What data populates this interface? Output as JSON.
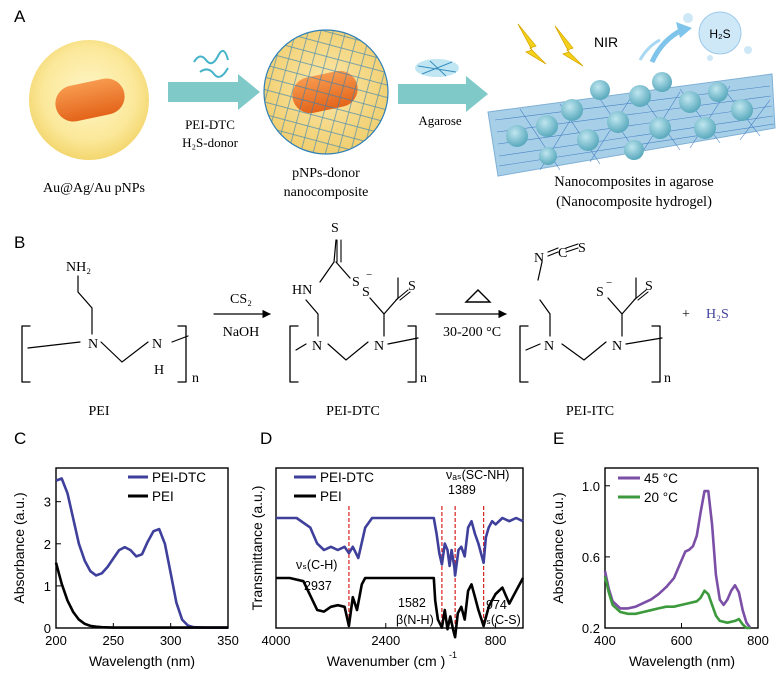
{
  "panels": {
    "A": {
      "letter": "A",
      "particle_label": "Au@Ag/Au pNPs",
      "arrow1_line1": "PEI-DTC",
      "arrow1_line2": "H₂S-donor",
      "composite_line1": "pNPs-donor",
      "composite_line2": "nanocomposite",
      "arrow2_label": "Agarose",
      "hydrogel_line1": "Nanocomposites in agarose",
      "hydrogel_line2": "(Nanocomposite hydrogel)",
      "nir_label": "NIR",
      "h2s_bubble": "H₂S"
    },
    "B": {
      "letter": "B",
      "pei": {
        "nh2": "NH₂",
        "n": "N",
        "nh_n": "N",
        "nh_h": "H",
        "sub": "n",
        "name": "PEI"
      },
      "step1_top": "CS₂",
      "step1_bottom": "NaOH",
      "dtc": {
        "s_top": "S",
        "hn": "HN",
        "s_minus": "S",
        "charge": "−",
        "s_right": "S",
        "s_left": "S",
        "n1": "N",
        "n2": "N",
        "sub": "n",
        "name": "PEI-DTC"
      },
      "step2_bottom": "30-200 °C",
      "itc": {
        "ncs": "N",
        "c": "C",
        "s": "S",
        "s_left": "S",
        "charge": "−",
        "s_right": "S",
        "n1": "N",
        "n2": "N",
        "sub": "n",
        "name": "PEI-ITC"
      },
      "plus": "+",
      "h2s": "H₂S"
    }
  },
  "colors": {
    "purple": "#3f3f9c",
    "black": "#000000",
    "violet": "#7b4fa6",
    "green": "#3c9a3c",
    "red": "#d62020",
    "teal": "#63c0c0"
  },
  "chart_data": [
    {
      "id": "C",
      "letter": "C",
      "type": "line",
      "xlabel": "Wavelength (nm)",
      "ylabel": "Absorbance (a.u.)",
      "xlim": [
        200,
        350
      ],
      "ylim": [
        0,
        3.8
      ],
      "xticks": [
        "200",
        "250",
        "300",
        "350"
      ],
      "yticks": [
        "0",
        "1",
        "2",
        "3"
      ],
      "legend": "top-right",
      "series": [
        {
          "name": "PEI-DTC",
          "color": "#3f3f9c",
          "x": [
            200,
            205,
            210,
            215,
            220,
            225,
            230,
            235,
            240,
            245,
            250,
            255,
            260,
            265,
            270,
            275,
            280,
            285,
            290,
            295,
            300,
            305,
            310,
            315,
            320,
            330,
            340,
            350
          ],
          "y": [
            3.5,
            3.55,
            3.2,
            2.6,
            2.0,
            1.6,
            1.35,
            1.25,
            1.3,
            1.45,
            1.65,
            1.85,
            1.92,
            1.85,
            1.7,
            1.75,
            2.05,
            2.3,
            2.35,
            2.0,
            1.3,
            0.6,
            0.2,
            0.06,
            0.02,
            0.01,
            0.01,
            0.01
          ]
        },
        {
          "name": "PEI",
          "color": "#000000",
          "x": [
            200,
            205,
            210,
            215,
            220,
            225,
            230,
            235,
            240,
            250,
            260,
            280,
            300,
            320,
            350
          ],
          "y": [
            1.55,
            1.05,
            0.65,
            0.38,
            0.2,
            0.1,
            0.05,
            0.03,
            0.02,
            0.01,
            0.01,
            0.01,
            0.01,
            0.01,
            0.01
          ]
        }
      ]
    },
    {
      "id": "D",
      "letter": "D",
      "type": "line",
      "xlabel": "Wavenumber  (cm  )",
      "xlabel_sup": "-1",
      "ylabel": "Transmittance (a.u.)",
      "xlim": [
        4000,
        400
      ],
      "xticks": [
        "4000",
        "2400",
        "800"
      ],
      "xtick_values": [
        4000,
        2400,
        800
      ],
      "legend": "top-left",
      "annotations": [
        {
          "text": "νₐₛ(SC-NH)",
          "value": "1389"
        },
        {
          "text": "νₛ(C-H)",
          "value": "2937"
        },
        {
          "text": "β(N-H)",
          "value": "1582"
        },
        {
          "text": "νₛ(C-S)",
          "value": "974"
        }
      ],
      "annotation_lines": [
        2937,
        1582,
        1389,
        974
      ],
      "series": [
        {
          "name": "PEI-DTC",
          "color": "#3f3f9c",
          "x": [
            4000,
            3700,
            3500,
            3400,
            3300,
            3200,
            3100,
            3000,
            2937,
            2880,
            2800,
            2700,
            2600,
            2400,
            2000,
            1700,
            1660,
            1620,
            1582,
            1540,
            1500,
            1470,
            1440,
            1400,
            1389,
            1340,
            1300,
            1250,
            1200,
            1150,
            1100,
            1050,
            974,
            940,
            900,
            850,
            800,
            700,
            600,
            500,
            400
          ],
          "y": [
            0.0,
            0.0,
            0.3,
            0.8,
            1.0,
            0.9,
            1.0,
            0.9,
            1.1,
            0.9,
            1.25,
            0.3,
            0.0,
            0.0,
            0.0,
            0.0,
            0.5,
            1.1,
            1.45,
            0.8,
            1.0,
            1.5,
            1.0,
            1.55,
            1.8,
            1.0,
            0.9,
            1.2,
            0.3,
            0.1,
            0.5,
            0.8,
            1.4,
            0.6,
            0.3,
            0.1,
            0.2,
            0.0,
            0.1,
            0.0,
            0.1
          ]
        },
        {
          "name": "PEI",
          "color": "#000000",
          "x": [
            4000,
            3800,
            3600,
            3500,
            3400,
            3300,
            3200,
            3100,
            3000,
            2937,
            2880,
            2820,
            2750,
            2700,
            2600,
            2400,
            2000,
            1700,
            1680,
            1640,
            1582,
            1540,
            1500,
            1460,
            1420,
            1389,
            1350,
            1300,
            1250,
            1200,
            1150,
            1100,
            1050,
            974,
            900,
            850,
            800,
            700,
            600,
            500,
            400
          ],
          "y": [
            0.0,
            0.0,
            0.1,
            0.55,
            1.0,
            1.05,
            0.9,
            0.85,
            0.9,
            1.5,
            0.6,
            1.0,
            0.2,
            0.0,
            0.0,
            0.0,
            0.0,
            0.0,
            0.7,
            1.3,
            1.55,
            1.0,
            1.6,
            1.2,
            1.6,
            1.85,
            1.1,
            0.9,
            1.3,
            0.4,
            0.2,
            0.6,
            1.0,
            1.5,
            0.9,
            0.7,
            0.5,
            0.3,
            0.8,
            0.4,
            0.0
          ]
        }
      ]
    },
    {
      "id": "E",
      "letter": "E",
      "type": "line",
      "xlabel": "Wavelength (nm)",
      "ylabel": "Absorbance (a.u.)",
      "xlim": [
        400,
        800
      ],
      "ylim": [
        0.2,
        1.1
      ],
      "xticks": [
        "400",
        "600",
        "800"
      ],
      "xtick_values": [
        400,
        600,
        800
      ],
      "yticks": [
        "0.2",
        "0.6",
        "1.0"
      ],
      "ytick_values": [
        0.2,
        0.6,
        1.0
      ],
      "legend": "top-left",
      "series": [
        {
          "name": "45 °C",
          "color": "#7b4fa6",
          "x": [
            400,
            410,
            420,
            440,
            460,
            480,
            500,
            520,
            540,
            560,
            580,
            600,
            610,
            620,
            630,
            640,
            650,
            660,
            670,
            680,
            690,
            700,
            710,
            720,
            730,
            740,
            750,
            760,
            770,
            780
          ],
          "y": [
            0.52,
            0.42,
            0.35,
            0.31,
            0.31,
            0.32,
            0.34,
            0.36,
            0.39,
            0.43,
            0.48,
            0.58,
            0.63,
            0.64,
            0.66,
            0.72,
            0.85,
            0.97,
            0.97,
            0.78,
            0.5,
            0.36,
            0.33,
            0.36,
            0.41,
            0.44,
            0.4,
            0.3,
            0.23,
            0.2
          ]
        },
        {
          "name": "20 °C",
          "color": "#3c9a3c",
          "x": [
            400,
            410,
            420,
            440,
            460,
            480,
            500,
            520,
            540,
            560,
            580,
            600,
            620,
            640,
            650,
            660,
            670,
            680,
            690,
            700,
            720,
            740,
            750,
            760,
            770,
            780
          ],
          "y": [
            0.49,
            0.4,
            0.33,
            0.29,
            0.28,
            0.28,
            0.29,
            0.3,
            0.31,
            0.32,
            0.32,
            0.33,
            0.34,
            0.35,
            0.37,
            0.41,
            0.39,
            0.33,
            0.27,
            0.24,
            0.23,
            0.24,
            0.25,
            0.22,
            0.2,
            0.2
          ]
        }
      ]
    }
  ]
}
